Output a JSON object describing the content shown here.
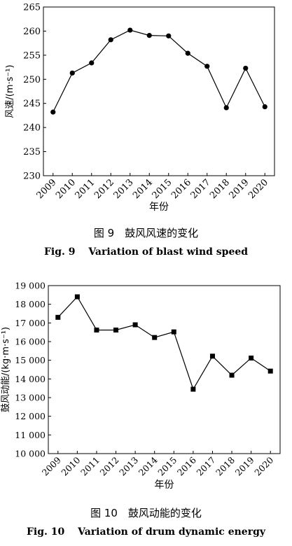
{
  "figures": [
    {
      "caption_cn": "图 9　鼓风风速的变化",
      "caption_en": "Fig. 9　 Variation of blast wind speed"
    },
    {
      "caption_cn": "图 10　鼓风动能的变化",
      "caption_en": "Fig. 10　 Variation of drum dynamic energy"
    }
  ],
  "chart_data": [
    {
      "type": "line",
      "marker": "circle",
      "x": [
        "2009",
        "2010",
        "2011",
        "2012",
        "2013",
        "2014",
        "2015",
        "2016",
        "2017",
        "2018",
        "2019",
        "2020"
      ],
      "series": [
        {
          "values": [
            243.2,
            251.3,
            253.4,
            258.2,
            260.2,
            259.1,
            259.0,
            255.4,
            252.7,
            244.1,
            252.3,
            244.3
          ]
        }
      ],
      "xlabel": "年份",
      "ylabel": "风速/(m·s⁻¹)",
      "ylim": [
        230,
        265
      ],
      "yticks": [
        230,
        235,
        240,
        245,
        250,
        255,
        260,
        265
      ],
      "ytick_labels": [
        "230",
        "235",
        "240",
        "245",
        "250",
        "255",
        "260",
        "265"
      ],
      "color": "#000000"
    },
    {
      "type": "line",
      "marker": "square",
      "x": [
        "2009",
        "2010",
        "2011",
        "2012",
        "2013",
        "2014",
        "2015",
        "2016",
        "2017",
        "2018",
        "2019",
        "2020"
      ],
      "series": [
        {
          "values": [
            17300,
            18400,
            16620,
            16620,
            16900,
            16220,
            16520,
            13450,
            15220,
            14200,
            15120,
            14420
          ]
        }
      ],
      "xlabel": "年份",
      "ylabel": "鼓风动能/(kg·m·s⁻¹)",
      "ylim": [
        10000,
        19000
      ],
      "yticks": [
        10000,
        11000,
        12000,
        13000,
        14000,
        15000,
        16000,
        17000,
        18000,
        19000
      ],
      "ytick_labels": [
        "10 000",
        "11 000",
        "12 000",
        "13 000",
        "14 000",
        "15 000",
        "16 000",
        "17 000",
        "18 000",
        "19 000"
      ],
      "color": "#000000"
    }
  ]
}
